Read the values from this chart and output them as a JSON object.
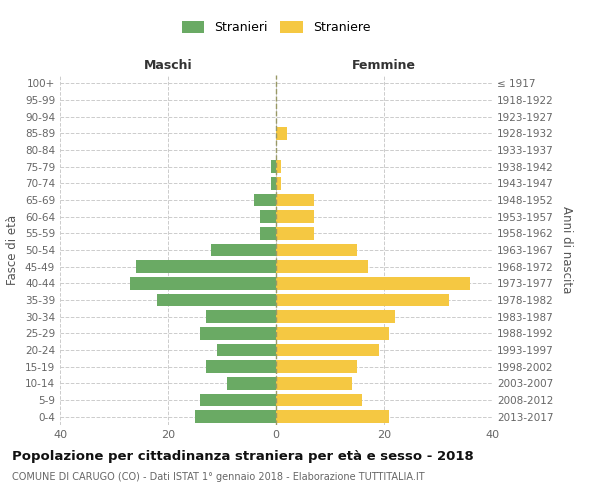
{
  "age_groups": [
    "100+",
    "95-99",
    "90-94",
    "85-89",
    "80-84",
    "75-79",
    "70-74",
    "65-69",
    "60-64",
    "55-59",
    "50-54",
    "45-49",
    "40-44",
    "35-39",
    "30-34",
    "25-29",
    "20-24",
    "15-19",
    "10-14",
    "5-9",
    "0-4"
  ],
  "birth_years": [
    "≤ 1917",
    "1918-1922",
    "1923-1927",
    "1928-1932",
    "1933-1937",
    "1938-1942",
    "1943-1947",
    "1948-1952",
    "1953-1957",
    "1958-1962",
    "1963-1967",
    "1968-1972",
    "1973-1977",
    "1978-1982",
    "1983-1987",
    "1988-1992",
    "1993-1997",
    "1998-2002",
    "2003-2007",
    "2008-2012",
    "2013-2017"
  ],
  "males": [
    0,
    0,
    0,
    0,
    0,
    1,
    1,
    4,
    3,
    3,
    12,
    26,
    27,
    22,
    13,
    14,
    11,
    13,
    9,
    14,
    15
  ],
  "females": [
    0,
    0,
    0,
    2,
    0,
    1,
    1,
    7,
    7,
    7,
    15,
    17,
    36,
    32,
    22,
    21,
    19,
    15,
    14,
    16,
    21
  ],
  "male_color": "#6aaa64",
  "female_color": "#f5c842",
  "background_color": "#ffffff",
  "grid_color": "#cccccc",
  "title": "Popolazione per cittadinanza straniera per età e sesso - 2018",
  "subtitle": "COMUNE DI CARUGO (CO) - Dati ISTAT 1° gennaio 2018 - Elaborazione TUTTITALIA.IT",
  "xlabel_left": "Maschi",
  "xlabel_right": "Femmine",
  "ylabel_left": "Fasce di età",
  "ylabel_right": "Anni di nascita",
  "legend_male": "Stranieri",
  "legend_female": "Straniere",
  "xlim": 40,
  "figsize": [
    6.0,
    5.0
  ],
  "dpi": 100
}
